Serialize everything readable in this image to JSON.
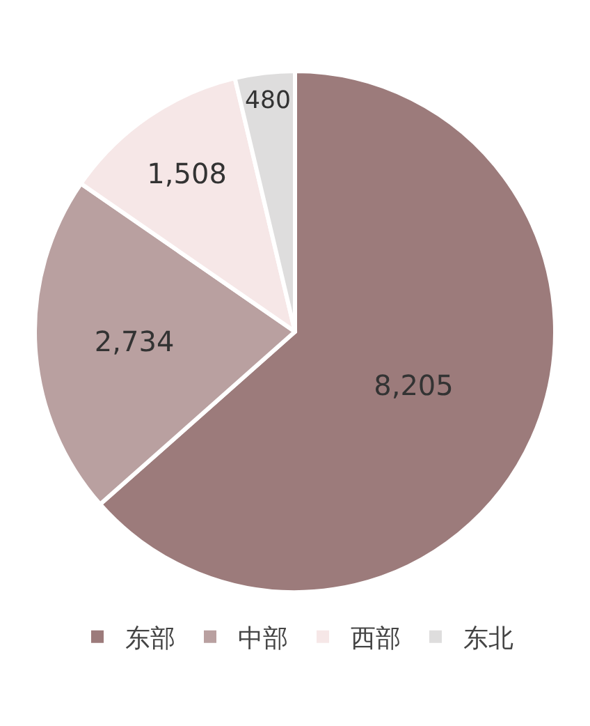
{
  "chart_data": {
    "type": "pie",
    "categories": [
      "东部",
      "中部",
      "西部",
      "东北"
    ],
    "values": [
      8205,
      2734,
      1508,
      480
    ],
    "colors": [
      "#9c7b7b",
      "#b9a0a0",
      "#f6e7e7",
      "#dedddd"
    ],
    "value_labels": [
      "8,205",
      "2,734",
      "1,508",
      "480"
    ],
    "legend": "bottom"
  }
}
